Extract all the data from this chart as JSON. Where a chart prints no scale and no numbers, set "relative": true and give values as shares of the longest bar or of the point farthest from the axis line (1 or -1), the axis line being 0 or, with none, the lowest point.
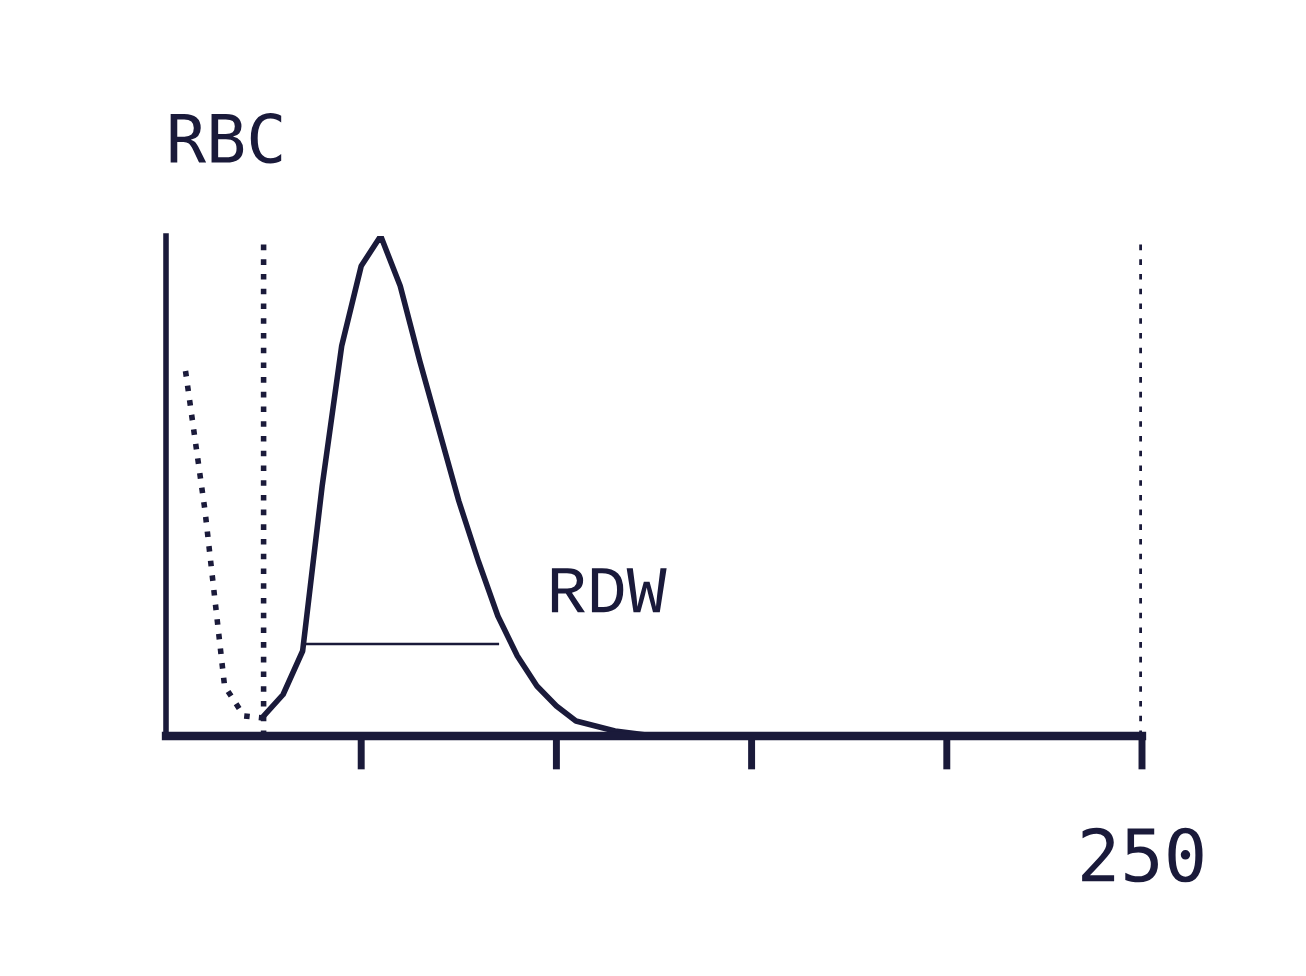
{
  "chart_data": {
    "type": "line",
    "title": "RBC",
    "relative": true,
    "marker": "none",
    "categories": [
      null,
      null,
      null,
      null,
      null,
      null,
      null,
      null,
      null,
      null,
      null,
      null,
      null,
      null,
      null,
      null,
      null,
      null,
      null,
      null,
      null,
      null,
      null,
      null,
      null,
      null,
      null,
      null,
      null,
      null,
      null,
      null,
      null,
      null,
      null,
      null,
      null,
      null,
      null,
      null,
      null,
      null,
      null,
      null,
      null,
      null,
      null,
      null,
      null,
      null,
      null
    ],
    "series": [
      {
        "color": "#1a1a3a",
        "line_style": "solid",
        "values": [
          null,
          null,
          null,
          null,
          null,
          0.04,
          0.083,
          0.17,
          0.5,
          0.78,
          0.94,
          1.0,
          0.9,
          0.75,
          0.61,
          0.47,
          0.35,
          0.24,
          0.16,
          0.1,
          0.06,
          0.03,
          0.02,
          0.01,
          0.005,
          0,
          0,
          0,
          0,
          0,
          0,
          0,
          0,
          0,
          0,
          0,
          0,
          0,
          0,
          0,
          0,
          0,
          0,
          0,
          0,
          0,
          0,
          0,
          0,
          0,
          0
        ]
      },
      {
        "color": "#1a1a3a",
        "line_style": "dotted",
        "values": [
          null,
          0.73,
          0.45,
          0.1,
          0.04,
          0.036,
          null,
          null,
          null,
          null,
          null,
          null,
          null,
          null,
          null,
          null,
          null,
          null,
          null,
          null,
          null,
          null,
          null,
          null,
          null,
          null,
          null,
          null,
          null,
          null,
          null,
          null,
          null,
          null,
          null,
          null,
          null,
          null,
          null,
          null,
          null,
          null,
          null,
          null,
          null,
          null,
          null,
          null,
          null,
          null,
          null
        ]
      },
      {
        "color": "#1a1a3a",
        "line_style": "solid",
        "values": [
          null,
          null,
          null,
          null,
          null,
          null,
          null,
          0.184,
          0.184,
          0.184,
          0.184,
          0.184,
          0.184,
          0.184,
          0.184,
          0.184,
          0.184,
          0.184,
          null,
          null,
          null,
          null,
          null,
          null,
          null,
          null,
          null,
          null,
          null,
          null,
          null,
          null,
          null,
          null,
          null,
          null,
          null,
          null,
          null,
          null,
          null,
          null,
          null,
          null,
          null,
          null,
          null,
          null,
          null,
          null,
          null
        ]
      }
    ],
    "annotations": [
      "RDW",
      "250"
    ]
  }
}
